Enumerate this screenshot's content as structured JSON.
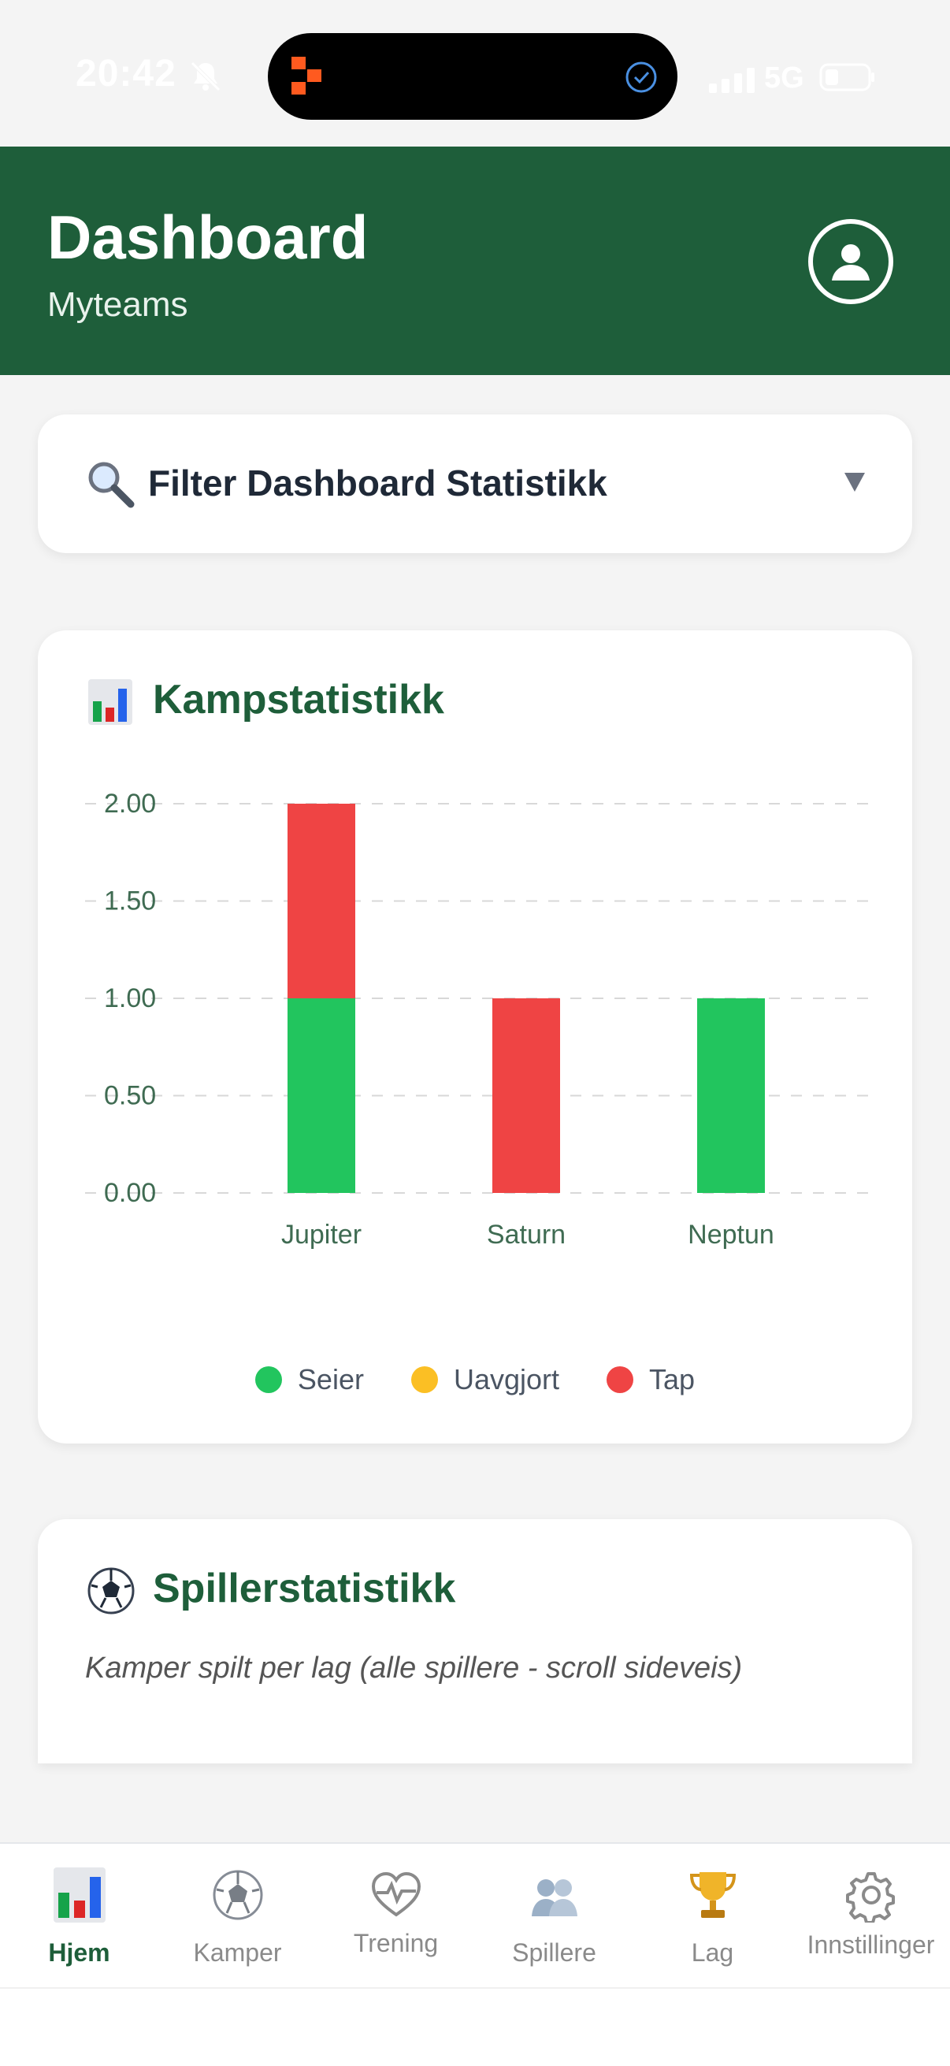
{
  "status_bar": {
    "time": "20:42",
    "network": "5G"
  },
  "header": {
    "title": "Dashboard",
    "subtitle": "Myteams"
  },
  "filter": {
    "label": "Filter Dashboard Statistikk"
  },
  "match_stats": {
    "title": "Kampstatistikk",
    "legend": [
      {
        "label": "Seier",
        "color": "#22c55e"
      },
      {
        "label": "Uavgjort",
        "color": "#fbbf24"
      },
      {
        "label": "Tap",
        "color": "#ef4444"
      }
    ]
  },
  "chart_data": {
    "type": "bar",
    "stacked": true,
    "categories": [
      "Jupiter",
      "Saturn",
      "Neptun"
    ],
    "series": [
      {
        "name": "Seier",
        "color": "#22c55e",
        "values": [
          1,
          0,
          1
        ]
      },
      {
        "name": "Uavgjort",
        "color": "#fbbf24",
        "values": [
          0,
          0,
          0
        ]
      },
      {
        "name": "Tap",
        "color": "#ef4444",
        "values": [
          1,
          1,
          0
        ]
      }
    ],
    "yticks": [
      "0.00",
      "0.50",
      "1.00",
      "1.50",
      "2.00"
    ],
    "ylim": [
      0,
      2
    ],
    "grid": true,
    "legend_position": "bottom"
  },
  "player_stats": {
    "title": "Spillerstatistikk",
    "note": "Kamper spilt per lag (alle spillere - scroll sideveis)"
  },
  "tabs": [
    {
      "label": "Hjem",
      "icon": "bar-chart-icon",
      "active": true
    },
    {
      "label": "Kamper",
      "icon": "soccer-ball-icon",
      "active": false
    },
    {
      "label": "Trening",
      "icon": "heartbeat-icon",
      "active": false
    },
    {
      "label": "Spillere",
      "icon": "players-icon",
      "active": false
    },
    {
      "label": "Lag",
      "icon": "trophy-icon",
      "active": false
    },
    {
      "label": "Innstillinger",
      "icon": "gear-icon",
      "active": false
    }
  ]
}
